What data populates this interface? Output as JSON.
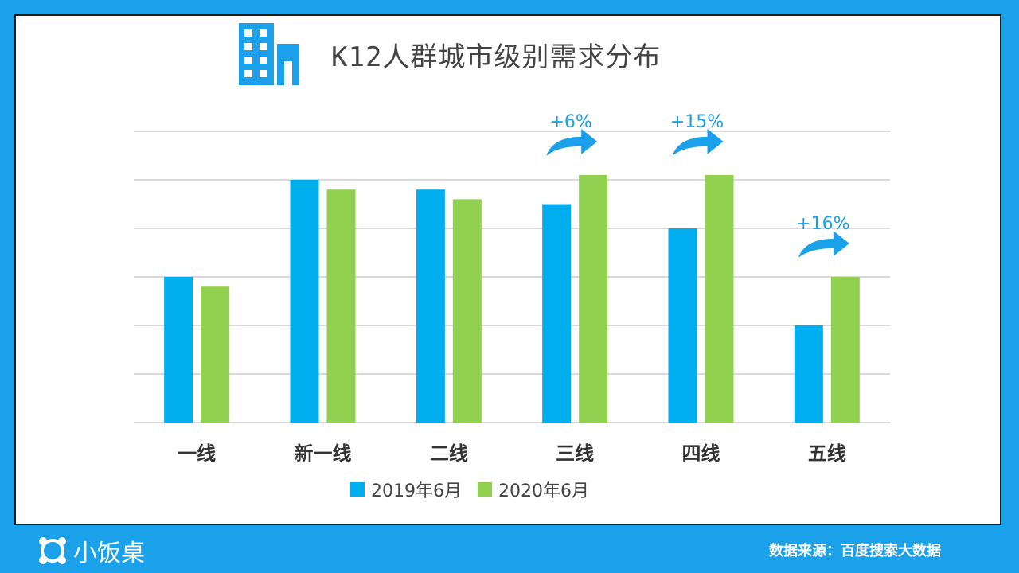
{
  "colors": {
    "background": "#1aa1ea",
    "series_2019": "#00adef",
    "series_2020": "#92d050",
    "annotation": "#1aa1ea",
    "grid": "#d9d9d9"
  },
  "header": {
    "title": "K12人群城市级别需求分布",
    "icon": "building-icon"
  },
  "footer": {
    "brand": "小饭桌",
    "source": "数据来源：百度搜索大数据"
  },
  "chart_data": {
    "type": "bar",
    "title": "K12人群城市级别需求分布",
    "categories": [
      "一线",
      "新一线",
      "二线",
      "三线",
      "四线",
      "五线"
    ],
    "series": [
      {
        "name": "2019年6月",
        "values": [
          3.0,
          5.0,
          4.8,
          4.5,
          4.0,
          2.0
        ]
      },
      {
        "name": "2020年6月",
        "values": [
          2.8,
          4.8,
          4.6,
          5.1,
          5.1,
          3.0
        ]
      }
    ],
    "ylim": [
      0,
      6
    ],
    "grid": true,
    "legend_position": "bottom",
    "annotations": [
      {
        "category_index": 3,
        "text": "+6%"
      },
      {
        "category_index": 4,
        "text": "+15%"
      },
      {
        "category_index": 5,
        "text": "+16%"
      }
    ]
  }
}
